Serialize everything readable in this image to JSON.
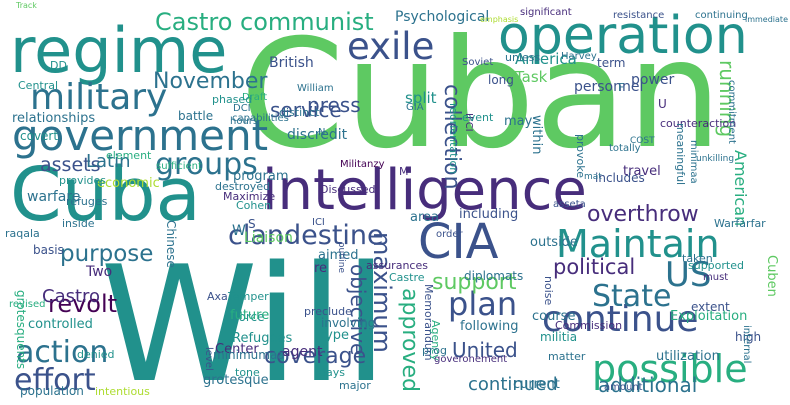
{
  "colors": {
    "background": "#ffffff",
    "palette": [
      "#440154",
      "#472d7b",
      "#3b528b",
      "#2c728e",
      "#21918c",
      "#28ae80",
      "#5ec962",
      "#addc30",
      "#fde725"
    ]
  },
  "words": [
    "Cuban",
    "Will",
    "Cuba",
    "intelligence",
    "regime",
    "operation",
    "government",
    "military",
    "exile",
    "Maintain",
    "continue",
    "possible",
    "CIA",
    "State",
    "US",
    "plan",
    "action",
    "effort",
    "groups",
    "clandestine",
    "revolt",
    "purpose",
    "approved",
    "maximum",
    "Castro communist",
    "assets",
    "November",
    "press",
    "service",
    "collection",
    "political",
    "support",
    "overthrow",
    "United",
    "coverage",
    "objective",
    "additional",
    "continued",
    "running",
    "American",
    "Latin",
    "Castro",
    "Psychological",
    "America",
    "Task",
    "British",
    "split",
    "discredit",
    "relationships",
    "covert",
    "Central",
    "diplomats",
    "current",
    "Refugees",
    "controlled",
    "Force",
    "Liaison",
    "economic",
    "warfare",
    "basis",
    "Two",
    "program",
    "including",
    "outside",
    "area",
    "personnel",
    "long",
    "may",
    "within",
    "travel",
    "includes",
    "significant",
    "resistance",
    "continuing",
    "Harvey",
    "Soviet",
    "unless",
    "term",
    "power",
    "battle",
    "hours",
    "DCI",
    "IFCI",
    "William",
    "capabilities",
    "distinct",
    "Draft",
    "phased",
    "destroyed",
    "provides",
    "refuges",
    "inside",
    "Cohen",
    "Chinese",
    "Maximize",
    "Discussed",
    "sufficient",
    "Militanzy",
    "ICI",
    "Axa",
    "Temper",
    "future",
    "aimed",
    "re",
    "type",
    "involving",
    "preclude",
    "agent",
    "Center",
    "minimumaa",
    "level",
    "tone",
    "days",
    "major",
    "grotesque",
    "intentious",
    "population",
    "denied",
    "grotesquents",
    "revised",
    "raqala",
    "element",
    "assurances",
    "Memorandum",
    "Castre",
    "Agency",
    "following",
    "course",
    "extent",
    "Exploitation",
    "Commission",
    "prog",
    "goveronement",
    "militia",
    "noise",
    "matter",
    "utilization",
    "high",
    "internal",
    "amount",
    "supported",
    "taken",
    "Warfarfar",
    "must",
    "Cuben",
    "counteraction",
    "commitment",
    "minimaa",
    "meaningful",
    "reorientation",
    "event",
    "provoke",
    "totally",
    "COST",
    "unkilling",
    "asseta",
    "mat",
    "outline",
    "order",
    "GIA",
    "emphasis",
    "immediate",
    "Track",
    "DD",
    "N",
    "F",
    "U",
    "M",
    "W",
    "S"
  ]
}
